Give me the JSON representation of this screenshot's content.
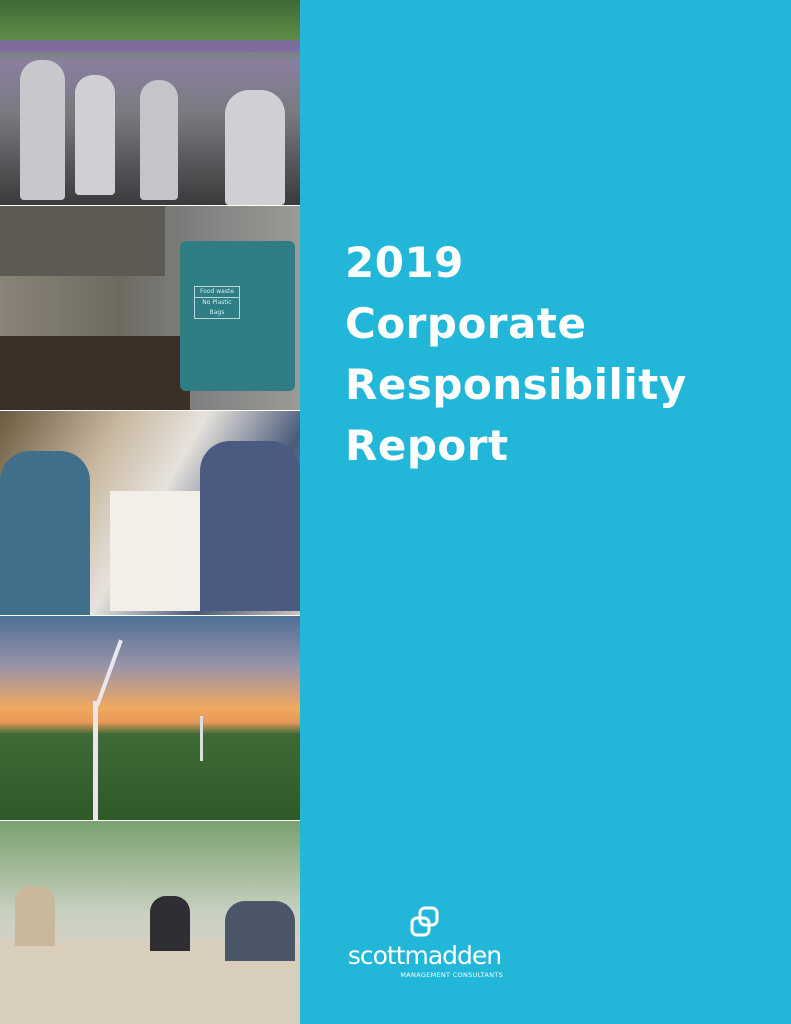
{
  "cover": {
    "background_color": "#22b7d9",
    "title_lines": [
      "2019",
      "Corporate",
      "Responsibility",
      "Report"
    ]
  },
  "logo": {
    "brand": "scottmadden",
    "tagline": "MANAGEMENT CONSULTANTS",
    "icon": "interlocking-squares-icon"
  },
  "photos": [
    {
      "subject": "charity walk participants"
    },
    {
      "subject": "food waste bin",
      "label_lines": [
        "Food waste",
        "No Plastic Bags"
      ]
    },
    {
      "subject": "volunteers packing meals"
    },
    {
      "subject": "wind turbines at sunset"
    },
    {
      "subject": "team meeting with laptops"
    }
  ]
}
